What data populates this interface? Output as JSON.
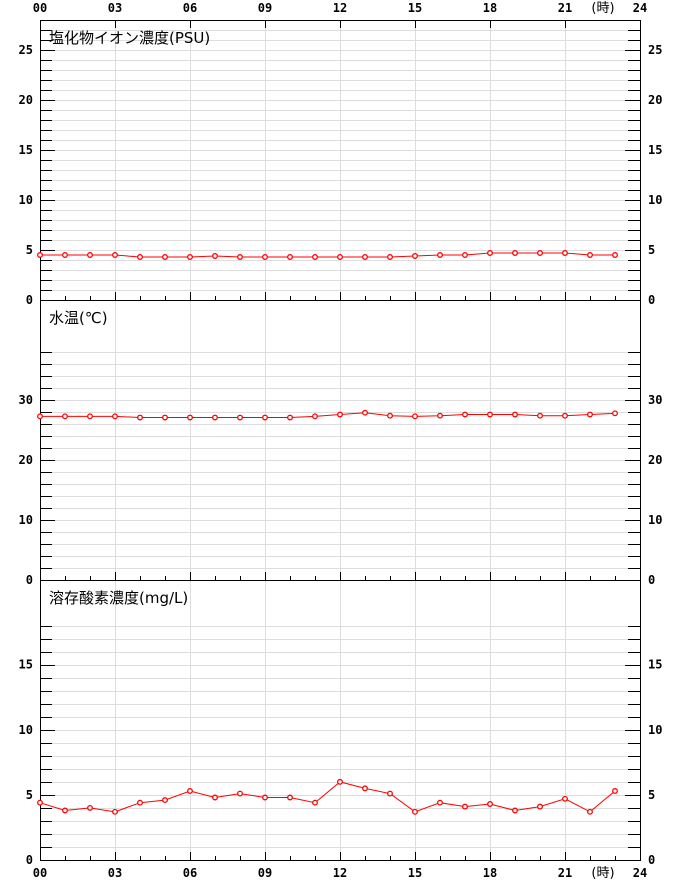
{
  "x_axis": {
    "tick_labels": [
      "00",
      "03",
      "06",
      "09",
      "12",
      "15",
      "18",
      "21",
      "24"
    ],
    "unit_label": "(時)"
  },
  "colors": {
    "series": "#ff0000",
    "grid": "#dddddd",
    "axis": "#000000"
  },
  "chart_data": [
    {
      "type": "line",
      "title": "塩化物イオン濃度(PSU)",
      "x": [
        0,
        1,
        2,
        3,
        4,
        5,
        6,
        7,
        8,
        9,
        10,
        11,
        12,
        13,
        14,
        15,
        16,
        17,
        18,
        19,
        20,
        21,
        22,
        23
      ],
      "values": [
        4.5,
        4.5,
        4.5,
        4.5,
        4.3,
        4.3,
        4.3,
        4.4,
        4.3,
        4.3,
        4.3,
        4.3,
        4.3,
        4.3,
        4.3,
        4.4,
        4.5,
        4.5,
        4.7,
        4.7,
        4.7,
        4.7,
        4.5,
        4.5
      ],
      "xlim": [
        0,
        24
      ],
      "ylim": [
        0,
        28
      ],
      "yticks": [
        0,
        5,
        10,
        15,
        20,
        25
      ],
      "grid": true
    },
    {
      "type": "line",
      "title": "水温(℃)",
      "x": [
        0,
        1,
        2,
        3,
        4,
        5,
        6,
        7,
        8,
        9,
        10,
        11,
        12,
        13,
        14,
        15,
        16,
        17,
        18,
        19,
        20,
        21,
        22,
        23
      ],
      "values": [
        27.3,
        27.3,
        27.3,
        27.3,
        27.1,
        27.1,
        27.1,
        27.1,
        27.1,
        27.1,
        27.1,
        27.3,
        27.6,
        27.9,
        27.4,
        27.3,
        27.4,
        27.6,
        27.6,
        27.6,
        27.4,
        27.4,
        27.6,
        27.8
      ],
      "xlim": [
        0,
        24
      ],
      "ylim": [
        0,
        46.7
      ],
      "yticks": [
        0,
        10,
        20,
        30
      ],
      "grid": true
    },
    {
      "type": "line",
      "title": "溶存酸素濃度(mg/L)",
      "x": [
        0,
        1,
        2,
        3,
        4,
        5,
        6,
        7,
        8,
        9,
        10,
        11,
        12,
        13,
        14,
        15,
        16,
        17,
        18,
        19,
        20,
        21,
        22,
        23
      ],
      "values": [
        4.4,
        3.8,
        4.0,
        3.7,
        4.4,
        4.6,
        5.3,
        4.8,
        5.1,
        4.8,
        4.8,
        4.4,
        6.0,
        5.5,
        5.1,
        3.7,
        4.4,
        4.1,
        4.3,
        3.8,
        4.1,
        4.7,
        3.7,
        5.3
      ],
      "xlim": [
        0,
        24
      ],
      "ylim": [
        0,
        21.5
      ],
      "yticks": [
        0,
        5,
        10,
        15
      ],
      "grid": true
    }
  ]
}
